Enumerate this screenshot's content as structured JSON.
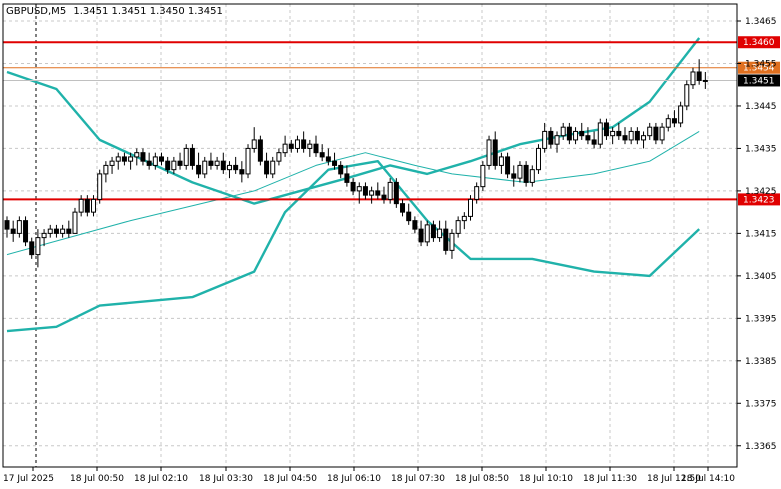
{
  "header": {
    "symbol": "GBPUSD,M5",
    "ohlc": "1.3451 1.3451 1.3450 1.3451"
  },
  "chart_data": {
    "type": "candlestick",
    "symbol": "GBPUSD",
    "timeframe": "M5",
    "ylim": [
      1.336,
      1.3469
    ],
    "grid": true,
    "y_ticks": [
      "1.3465",
      "1.3455",
      "1.3445",
      "1.3435",
      "1.3425",
      "1.3415",
      "1.3405",
      "1.3395",
      "1.3385",
      "1.3375",
      "1.3365"
    ],
    "x_ticks": [
      "17 Jul 2025",
      "18 Jul 00:50",
      "18 Jul 02:10",
      "18 Jul 03:30",
      "18 Jul 04:50",
      "18 Jul 06:10",
      "18 Jul 07:30",
      "18 Jul 08:50",
      "18 Jul 10:10",
      "18 Jul 11:30",
      "18 Jul 12:50",
      "18 Jul 14:10"
    ],
    "levels": [
      {
        "value": 1.346,
        "label": "1.3460",
        "color": "#e00000"
      },
      {
        "value": 1.3454,
        "label": "1.3454",
        "color": "#e07020"
      },
      {
        "value": 1.3423,
        "label": "1.3423",
        "color": "#e00000"
      },
      {
        "value": 1.3451,
        "label": "1.3451",
        "color": "#000000"
      }
    ],
    "candles": [
      [
        1.3418,
        1.3419,
        1.3414,
        1.3416
      ],
      [
        1.3416,
        1.3418,
        1.3413,
        1.3415
      ],
      [
        1.3415,
        1.3419,
        1.3414,
        1.3418
      ],
      [
        1.3418,
        1.3419,
        1.3412,
        1.3413
      ],
      [
        1.3413,
        1.3414,
        1.3409,
        1.341
      ],
      [
        1.341,
        1.3416,
        1.3407,
        1.3414
      ],
      [
        1.3414,
        1.3416,
        1.3412,
        1.3415
      ],
      [
        1.3415,
        1.3417,
        1.3414,
        1.3416
      ],
      [
        1.3416,
        1.3417,
        1.3414,
        1.3415
      ],
      [
        1.3415,
        1.3417,
        1.3414,
        1.3416
      ],
      [
        1.3416,
        1.3418,
        1.3414,
        1.3415
      ],
      [
        1.3415,
        1.3421,
        1.3415,
        1.342
      ],
      [
        1.342,
        1.3424,
        1.3419,
        1.3423
      ],
      [
        1.3423,
        1.3424,
        1.3419,
        1.342
      ],
      [
        1.342,
        1.3424,
        1.3419,
        1.3423
      ],
      [
        1.3423,
        1.343,
        1.3422,
        1.3429
      ],
      [
        1.3429,
        1.3432,
        1.3427,
        1.3431
      ],
      [
        1.3431,
        1.3433,
        1.3429,
        1.3432
      ],
      [
        1.3432,
        1.3434,
        1.343,
        1.3433
      ],
      [
        1.3433,
        1.3434,
        1.3431,
        1.3432
      ],
      [
        1.3432,
        1.3434,
        1.343,
        1.3433
      ],
      [
        1.3433,
        1.3435,
        1.3431,
        1.3434
      ],
      [
        1.3434,
        1.3435,
        1.3431,
        1.3432
      ],
      [
        1.3432,
        1.3434,
        1.343,
        1.3431
      ],
      [
        1.3431,
        1.3434,
        1.343,
        1.3433
      ],
      [
        1.3433,
        1.3434,
        1.3431,
        1.3432
      ],
      [
        1.3432,
        1.3433,
        1.3429,
        1.343
      ],
      [
        1.343,
        1.3433,
        1.3429,
        1.3432
      ],
      [
        1.3432,
        1.3434,
        1.343,
        1.3431
      ],
      [
        1.3431,
        1.3436,
        1.343,
        1.3435
      ],
      [
        1.3435,
        1.3436,
        1.343,
        1.3431
      ],
      [
        1.3431,
        1.3434,
        1.3428,
        1.3429
      ],
      [
        1.3429,
        1.3433,
        1.3428,
        1.3432
      ],
      [
        1.3432,
        1.3434,
        1.343,
        1.3431
      ],
      [
        1.3431,
        1.3433,
        1.343,
        1.3432
      ],
      [
        1.3432,
        1.3434,
        1.3429,
        1.343
      ],
      [
        1.343,
        1.3432,
        1.3428,
        1.3431
      ],
      [
        1.3431,
        1.3433,
        1.3429,
        1.343
      ],
      [
        1.343,
        1.3432,
        1.3427,
        1.3429
      ],
      [
        1.3429,
        1.3436,
        1.3428,
        1.3435
      ],
      [
        1.3435,
        1.344,
        1.3434,
        1.3437
      ],
      [
        1.3437,
        1.3438,
        1.3431,
        1.3432
      ],
      [
        1.3432,
        1.3434,
        1.3428,
        1.3429
      ],
      [
        1.3429,
        1.3433,
        1.3428,
        1.3432
      ],
      [
        1.3432,
        1.3435,
        1.3431,
        1.3434
      ],
      [
        1.3434,
        1.3438,
        1.3433,
        1.3436
      ],
      [
        1.3436,
        1.3437,
        1.3434,
        1.3435
      ],
      [
        1.3435,
        1.3438,
        1.3434,
        1.3437
      ],
      [
        1.3437,
        1.3439,
        1.3434,
        1.3435
      ],
      [
        1.3435,
        1.3437,
        1.3433,
        1.3436
      ],
      [
        1.3436,
        1.3438,
        1.3433,
        1.3434
      ],
      [
        1.3434,
        1.3436,
        1.3432,
        1.3433
      ],
      [
        1.3433,
        1.3435,
        1.3431,
        1.3432
      ],
      [
        1.3432,
        1.3434,
        1.343,
        1.3431
      ],
      [
        1.3431,
        1.3432,
        1.3428,
        1.3429
      ],
      [
        1.3429,
        1.3431,
        1.3426,
        1.3427
      ],
      [
        1.3427,
        1.3428,
        1.3424,
        1.3425
      ],
      [
        1.3425,
        1.3427,
        1.3422,
        1.3426
      ],
      [
        1.3426,
        1.3427,
        1.3423,
        1.3424
      ],
      [
        1.3424,
        1.3426,
        1.3422,
        1.3425
      ],
      [
        1.3425,
        1.3427,
        1.3423,
        1.3424
      ],
      [
        1.3424,
        1.3426,
        1.3422,
        1.3423
      ],
      [
        1.3423,
        1.3428,
        1.3422,
        1.3427
      ],
      [
        1.3427,
        1.3428,
        1.3421,
        1.3422
      ],
      [
        1.3422,
        1.3423,
        1.3419,
        1.342
      ],
      [
        1.342,
        1.3422,
        1.3417,
        1.3418
      ],
      [
        1.3418,
        1.3419,
        1.3415,
        1.3416
      ],
      [
        1.3416,
        1.3418,
        1.3412,
        1.3413
      ],
      [
        1.3413,
        1.3418,
        1.3412,
        1.3417
      ],
      [
        1.3417,
        1.3418,
        1.3413,
        1.3414
      ],
      [
        1.3414,
        1.3418,
        1.3413,
        1.3416
      ],
      [
        1.3416,
        1.3418,
        1.341,
        1.3411
      ],
      [
        1.3411,
        1.3416,
        1.3409,
        1.3415
      ],
      [
        1.3415,
        1.3419,
        1.3414,
        1.3418
      ],
      [
        1.3418,
        1.342,
        1.3416,
        1.3419
      ],
      [
        1.3419,
        1.3424,
        1.3418,
        1.3423
      ],
      [
        1.3423,
        1.3427,
        1.3422,
        1.3426
      ],
      [
        1.3426,
        1.3432,
        1.3425,
        1.3431
      ],
      [
        1.3431,
        1.3438,
        1.343,
        1.3437
      ],
      [
        1.3437,
        1.3439,
        1.343,
        1.3431
      ],
      [
        1.3431,
        1.3434,
        1.3429,
        1.3433
      ],
      [
        1.3433,
        1.3434,
        1.3428,
        1.3429
      ],
      [
        1.3429,
        1.3431,
        1.3426,
        1.3428
      ],
      [
        1.3428,
        1.3432,
        1.3427,
        1.3431
      ],
      [
        1.3431,
        1.3432,
        1.3426,
        1.3427
      ],
      [
        1.3427,
        1.3431,
        1.3426,
        1.343
      ],
      [
        1.343,
        1.3436,
        1.3429,
        1.3435
      ],
      [
        1.3435,
        1.3441,
        1.3434,
        1.3439
      ],
      [
        1.3439,
        1.344,
        1.3435,
        1.3436
      ],
      [
        1.3436,
        1.3439,
        1.3434,
        1.3438
      ],
      [
        1.3438,
        1.3441,
        1.3437,
        1.344
      ],
      [
        1.344,
        1.3441,
        1.3436,
        1.3437
      ],
      [
        1.3437,
        1.344,
        1.3436,
        1.3439
      ],
      [
        1.3439,
        1.3441,
        1.3437,
        1.3438
      ],
      [
        1.3438,
        1.344,
        1.3436,
        1.3437
      ],
      [
        1.3437,
        1.3439,
        1.3435,
        1.3436
      ],
      [
        1.3436,
        1.3442,
        1.3435,
        1.3441
      ],
      [
        1.3441,
        1.3442,
        1.3437,
        1.3438
      ],
      [
        1.3438,
        1.344,
        1.3436,
        1.3439
      ],
      [
        1.3439,
        1.3441,
        1.3437,
        1.3438
      ],
      [
        1.3438,
        1.344,
        1.3436,
        1.3437
      ],
      [
        1.3437,
        1.344,
        1.3436,
        1.3439
      ],
      [
        1.3439,
        1.344,
        1.3436,
        1.3437
      ],
      [
        1.3437,
        1.3439,
        1.3435,
        1.3438
      ],
      [
        1.3438,
        1.3441,
        1.3437,
        1.344
      ],
      [
        1.344,
        1.3441,
        1.3436,
        1.3437
      ],
      [
        1.3437,
        1.3441,
        1.3436,
        1.344
      ],
      [
        1.344,
        1.3443,
        1.3439,
        1.3442
      ],
      [
        1.3442,
        1.3444,
        1.344,
        1.3441
      ],
      [
        1.3441,
        1.3446,
        1.344,
        1.3445
      ],
      [
        1.3445,
        1.3451,
        1.3444,
        1.345
      ],
      [
        1.345,
        1.3454,
        1.3449,
        1.3453
      ],
      [
        1.3453,
        1.3456,
        1.345,
        1.3451
      ],
      [
        1.3451,
        1.3453,
        1.3449,
        1.3451
      ]
    ],
    "bollinger_upper": [
      [
        0,
        1.3453
      ],
      [
        8,
        1.3449
      ],
      [
        15,
        1.3437
      ],
      [
        30,
        1.3427
      ],
      [
        40,
        1.3422
      ],
      [
        55,
        1.3428
      ],
      [
        62,
        1.3431
      ],
      [
        68,
        1.3429
      ],
      [
        75,
        1.3432
      ],
      [
        83,
        1.3436
      ],
      [
        90,
        1.3438
      ],
      [
        98,
        1.344
      ],
      [
        104,
        1.3446
      ],
      [
        112,
        1.3461
      ]
    ],
    "bollinger_middle": [
      [
        0,
        1.341
      ],
      [
        20,
        1.3418
      ],
      [
        40,
        1.3425
      ],
      [
        50,
        1.3431
      ],
      [
        58,
        1.3434
      ],
      [
        66,
        1.3431
      ],
      [
        72,
        1.3429
      ],
      [
        84,
        1.3427
      ],
      [
        95,
        1.3429
      ],
      [
        104,
        1.3432
      ],
      [
        112,
        1.3439
      ]
    ],
    "bollinger_lower": [
      [
        0,
        1.3392
      ],
      [
        8,
        1.3393
      ],
      [
        15,
        1.3398
      ],
      [
        30,
        1.34
      ],
      [
        40,
        1.3406
      ],
      [
        45,
        1.342
      ],
      [
        52,
        1.343
      ],
      [
        60,
        1.3432
      ],
      [
        68,
        1.3418
      ],
      [
        75,
        1.3409
      ],
      [
        85,
        1.3409
      ],
      [
        95,
        1.3406
      ],
      [
        104,
        1.3405
      ],
      [
        112,
        1.3416
      ]
    ]
  }
}
